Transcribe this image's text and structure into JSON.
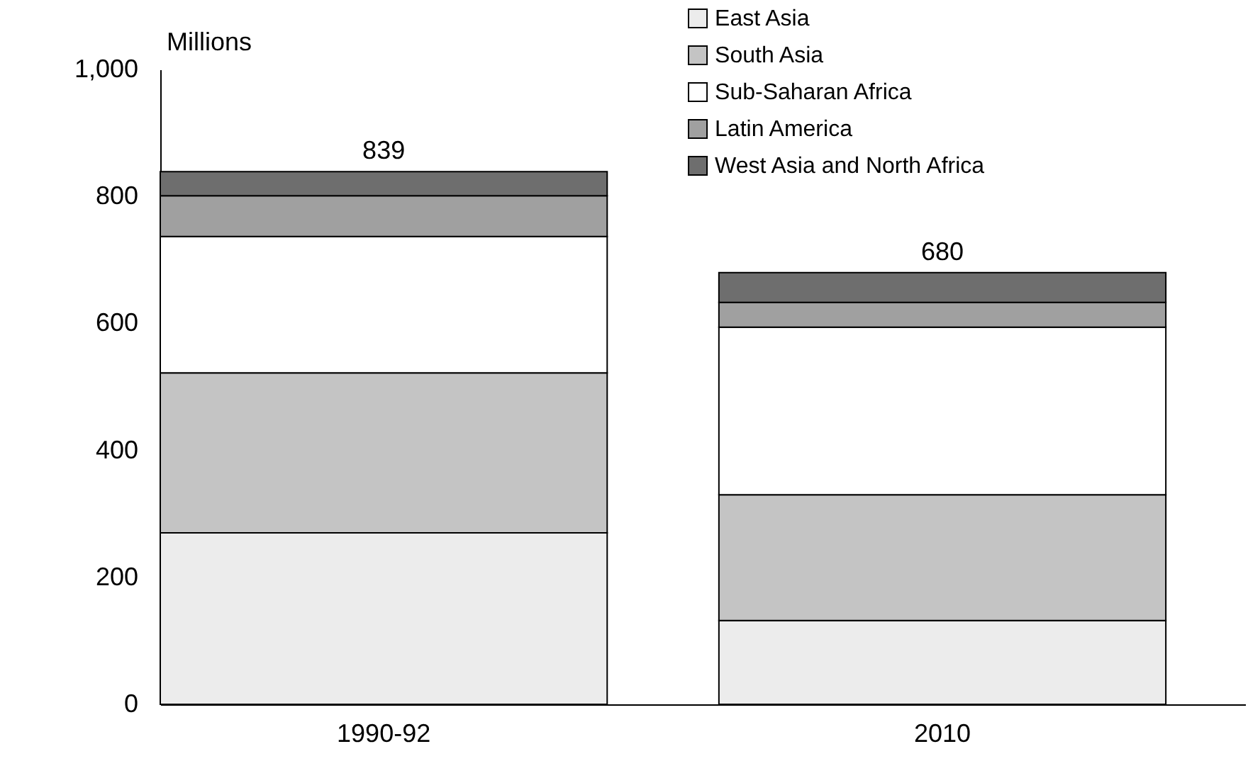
{
  "chart_data": {
    "type": "bar",
    "stacked": true,
    "ylabel": "Millions",
    "categories": [
      "1990-92",
      "2010"
    ],
    "series": [
      {
        "name": "East Asia",
        "color": "#ececec",
        "values": [
          270,
          132
        ]
      },
      {
        "name": "South Asia",
        "color": "#c4c4c4",
        "values": [
          252,
          198
        ]
      },
      {
        "name": "Sub-Saharan Africa",
        "color": "#ffffff",
        "values": [
          215,
          264
        ]
      },
      {
        "name": "Latin America",
        "color": "#a0a0a0",
        "values": [
          64,
          39
        ]
      },
      {
        "name": "West Asia and North Africa",
        "color": "#6e6e6e",
        "values": [
          38,
          47
        ]
      }
    ],
    "ylim": [
      0,
      1000
    ],
    "yticks": [
      0,
      200,
      400,
      600,
      800,
      {
        "value": 1000,
        "label": "1,000"
      }
    ],
    "totals": [
      "839",
      "680"
    ],
    "legend": "top right"
  }
}
